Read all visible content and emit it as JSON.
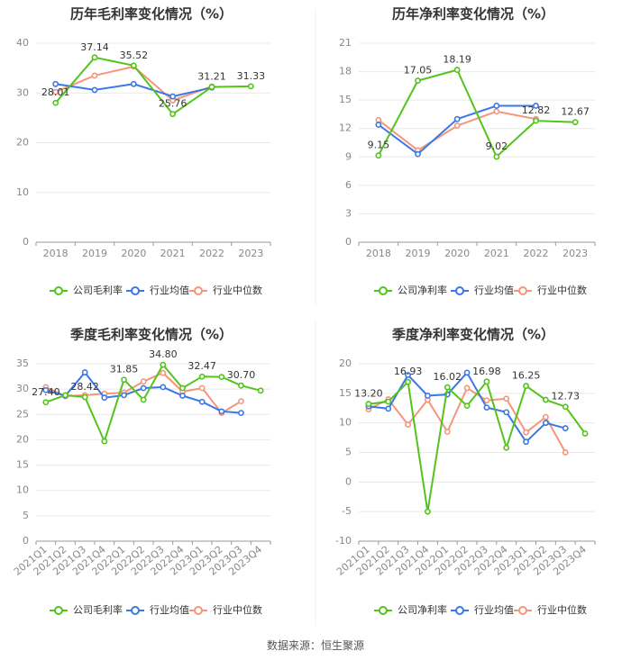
{
  "colors": {
    "company": "#52c41a",
    "industry_avg": "#3b78e7",
    "industry_median": "#f5957a",
    "grid": "#e8e8e8",
    "axis": "#999999",
    "tick_text": "#888888",
    "title": "#333333",
    "label": "#333333"
  },
  "chart_data": [
    {
      "type": "line",
      "title": "历年毛利率变化情况（%）",
      "categories": [
        "2018",
        "2019",
        "2020",
        "2021",
        "2022",
        "2023"
      ],
      "ylim": [
        0,
        40
      ],
      "yticks": [
        0,
        10,
        20,
        30,
        40
      ],
      "series": [
        {
          "name": "公司毛利率",
          "key": "company",
          "values": [
            28.01,
            37.14,
            35.52,
            25.76,
            31.21,
            31.33
          ]
        },
        {
          "name": "行业均值",
          "key": "industry_avg",
          "values": [
            31.8,
            30.6,
            31.8,
            29.3,
            31.1,
            null
          ]
        },
        {
          "name": "行业中位数",
          "key": "industry_median",
          "values": [
            30.2,
            33.5,
            35.3,
            28.5,
            31.3,
            null
          ]
        }
      ],
      "data_labels": [
        "28.01",
        "37.14",
        "35.52",
        "25.76",
        "31.21",
        "31.33"
      ],
      "legend": [
        "公司毛利率",
        "行业均值",
        "行业中位数"
      ]
    },
    {
      "type": "line",
      "title": "历年净利率变化情况（%）",
      "categories": [
        "2018",
        "2019",
        "2020",
        "2021",
        "2022",
        "2023"
      ],
      "ylim": [
        0,
        21
      ],
      "yticks": [
        0,
        3,
        6,
        9,
        12,
        15,
        18,
        21
      ],
      "series": [
        {
          "name": "公司净利率",
          "key": "company",
          "values": [
            9.15,
            17.05,
            18.19,
            9.02,
            12.82,
            12.67
          ]
        },
        {
          "name": "行业均值",
          "key": "industry_avg",
          "values": [
            12.4,
            9.3,
            13.0,
            14.4,
            14.4,
            null
          ]
        },
        {
          "name": "行业中位数",
          "key": "industry_median",
          "values": [
            12.9,
            9.7,
            12.3,
            13.8,
            13.0,
            null
          ]
        }
      ],
      "data_labels": [
        "9.15",
        "17.05",
        "18.19",
        "9.02",
        "12.82",
        "12.67"
      ],
      "legend": [
        "公司净利率",
        "行业均值",
        "行业中位数"
      ]
    },
    {
      "type": "line",
      "title": "季度毛利率变化情况（%）",
      "categories": [
        "2021Q1",
        "2021Q2",
        "2021Q3",
        "2021Q4",
        "2022Q1",
        "2022Q2",
        "2022Q3",
        "2022Q4",
        "2023Q1",
        "2023Q2",
        "2023Q3",
        "2023Q4"
      ],
      "ylim": [
        0,
        35
      ],
      "yticks": [
        0,
        5,
        10,
        15,
        20,
        25,
        30,
        35
      ],
      "series": [
        {
          "name": "公司毛利率",
          "key": "company",
          "values": [
            27.4,
            28.8,
            28.42,
            19.7,
            31.85,
            27.9,
            34.8,
            30.2,
            32.47,
            32.4,
            30.7,
            29.7
          ]
        },
        {
          "name": "行业均值",
          "key": "industry_avg",
          "values": [
            29.8,
            28.7,
            33.3,
            28.3,
            28.8,
            30.2,
            30.4,
            28.7,
            27.5,
            25.6,
            25.3,
            null
          ]
        },
        {
          "name": "行业中位数",
          "key": "industry_median",
          "values": [
            30.4,
            28.6,
            28.8,
            29.1,
            29.3,
            31.5,
            33.2,
            29.5,
            30.2,
            25.3,
            27.6,
            null
          ]
        }
      ],
      "data_labels": [
        "27.40",
        "",
        "28.42",
        "",
        "31.85",
        "",
        "34.80",
        "",
        "32.47",
        "",
        "30.70",
        ""
      ],
      "legend": [
        "公司毛利率",
        "行业均值",
        "行业中位数"
      ]
    },
    {
      "type": "line",
      "title": "季度净利率变化情况（%）",
      "categories": [
        "2021Q1",
        "2021Q2",
        "2021Q3",
        "2021Q4",
        "2022Q1",
        "2022Q2",
        "2022Q3",
        "2022Q4",
        "2023Q1",
        "2023Q2",
        "2023Q3",
        "2023Q4"
      ],
      "ylim": [
        -10,
        20
      ],
      "yticks": [
        -10,
        -5,
        0,
        5,
        10,
        15,
        20
      ],
      "series": [
        {
          "name": "公司净利率",
          "key": "company",
          "values": [
            13.2,
            13.6,
            16.93,
            -5.0,
            16.02,
            12.9,
            16.98,
            5.8,
            16.25,
            13.9,
            12.73,
            8.2
          ]
        },
        {
          "name": "行业均值",
          "key": "industry_avg",
          "values": [
            12.8,
            12.4,
            18.1,
            14.6,
            14.8,
            18.5,
            12.6,
            11.8,
            6.8,
            10.0,
            9.1,
            null
          ]
        },
        {
          "name": "行业中位数",
          "key": "industry_median",
          "values": [
            12.3,
            14.0,
            9.7,
            13.9,
            8.5,
            15.9,
            13.8,
            14.1,
            8.4,
            11.0,
            5.0,
            null
          ]
        }
      ],
      "data_labels": [
        "13.20",
        "",
        "16.93",
        "",
        "16.02",
        "",
        "16.98",
        "",
        "16.25",
        "",
        "12.73",
        ""
      ],
      "legend": [
        "公司净利率",
        "行业均值",
        "行业中位数"
      ]
    }
  ],
  "source_text": "数据来源：恒生聚源"
}
